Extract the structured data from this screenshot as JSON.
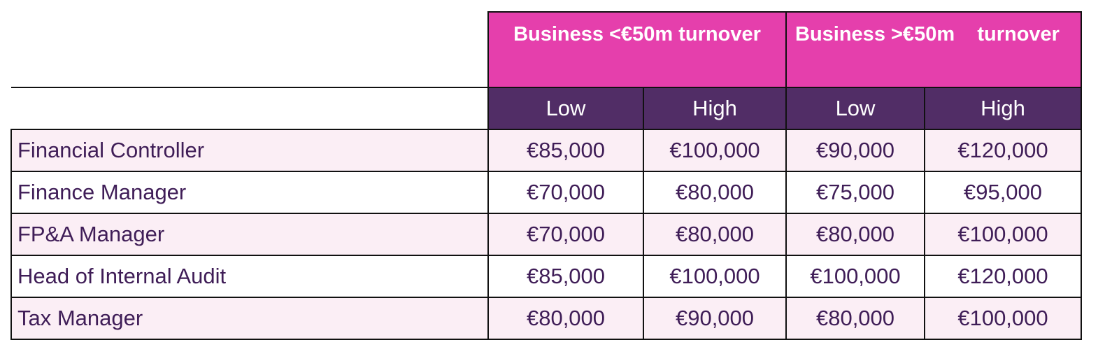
{
  "table": {
    "groups": [
      {
        "label": "Business <€50m turnover"
      },
      {
        "label": "Business >€50m    turnover"
      }
    ],
    "subheaders": [
      "Low",
      "High",
      "Low",
      "High"
    ],
    "rows": [
      {
        "role": "Financial Controller",
        "values": [
          "€85,000",
          "€100,000",
          "€90,000",
          "€120,000"
        ]
      },
      {
        "role": "Finance Manager",
        "values": [
          "€70,000",
          "€80,000",
          "€75,000",
          "€95,000"
        ]
      },
      {
        "role": "FP&A Manager",
        "values": [
          "€70,000",
          "€80,000",
          "€80,000",
          "€100,000"
        ]
      },
      {
        "role": "Head of Internal Audit",
        "values": [
          "€85,000",
          "€100,000",
          "€100,000",
          "€120,000"
        ]
      },
      {
        "role": "Tax Manager",
        "values": [
          "€80,000",
          "€90,000",
          "€80,000",
          "€100,000"
        ]
      }
    ],
    "colors": {
      "group_header_bg": "#e53fac",
      "sub_header_bg": "#512d66",
      "row_alt_bg": "#fbeef5",
      "text": "#3f1d57"
    }
  }
}
